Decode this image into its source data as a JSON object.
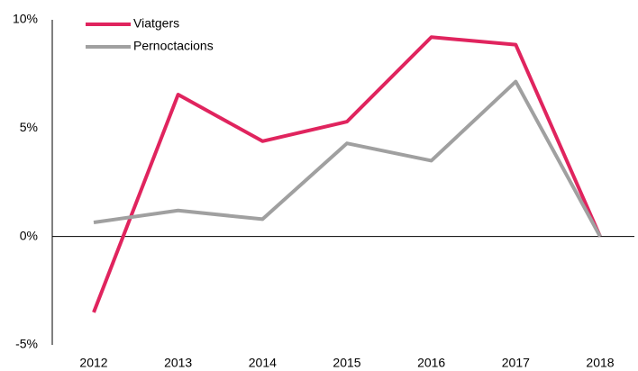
{
  "chart_data": {
    "type": "line",
    "categories": [
      "2012",
      "2013",
      "2014",
      "2015",
      "2016",
      "2017",
      "2018"
    ],
    "series": [
      {
        "name": "Viatgers",
        "color": "#e0245e",
        "values": [
          -3.5,
          6.55,
          4.4,
          5.3,
          9.2,
          8.85,
          0
        ]
      },
      {
        "name": "Pernoctacions",
        "color": "#a0a0a0",
        "values": [
          0.65,
          1.2,
          0.8,
          4.3,
          3.5,
          7.15,
          0
        ]
      }
    ],
    "ylim": [
      -5,
      10
    ],
    "yticks": [
      {
        "value": 10,
        "label": "10%"
      },
      {
        "value": 5,
        "label": "5%"
      },
      {
        "value": 0,
        "label": "0%"
      },
      {
        "value": -5,
        "label": "-5%"
      }
    ],
    "legend": "upper left"
  }
}
